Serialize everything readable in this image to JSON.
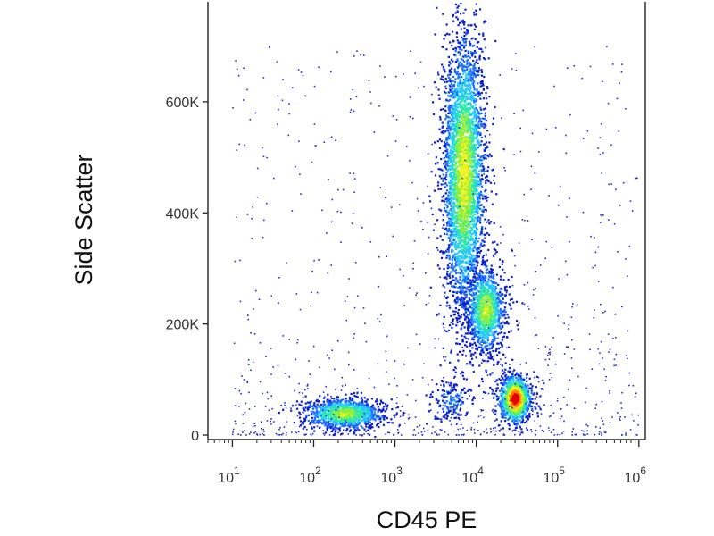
{
  "chart_data": {
    "type": "scatter",
    "style": "flow-cytometry pseudocolor density plot",
    "title": "",
    "xlabel": "CD45 PE",
    "ylabel": "Side Scatter",
    "x_scale": "log",
    "xlim": [
      5,
      1200000
    ],
    "ylim": [
      -8000,
      780000
    ],
    "grid": false,
    "legend": "none",
    "x_ticks": [
      {
        "value": 10,
        "base": "10",
        "exp": "1"
      },
      {
        "value": 100,
        "base": "10",
        "exp": "2"
      },
      {
        "value": 1000,
        "base": "10",
        "exp": "3"
      },
      {
        "value": 10000,
        "base": "10",
        "exp": "4"
      },
      {
        "value": 100000,
        "base": "10",
        "exp": "5"
      },
      {
        "value": 1000000,
        "base": "10",
        "exp": "6"
      }
    ],
    "y_ticks": [
      {
        "value": 0,
        "label": "0"
      },
      {
        "value": 200000,
        "label": "200K"
      },
      {
        "value": 400000,
        "label": "400K"
      },
      {
        "value": 600000,
        "label": "600K"
      }
    ],
    "density_colormap": [
      "#0a1fcc",
      "#1a6fff",
      "#22c8ff",
      "#2ee8a8",
      "#8cf03a",
      "#f2f21a",
      "#ff8a00",
      "#e60000"
    ],
    "populations": [
      {
        "log10_x": 3.85,
        "y": 470000,
        "sd_log10_x": 0.13,
        "sd_y": 130000,
        "peak_density": 0.68
      },
      {
        "log10_x": 4.12,
        "y": 225000,
        "sd_log10_x": 0.12,
        "sd_y": 40000,
        "peak_density": 0.62
      },
      {
        "log10_x": 4.48,
        "y": 65000,
        "sd_log10_x": 0.1,
        "sd_y": 22000,
        "peak_density": 1.0
      },
      {
        "log10_x": 2.38,
        "y": 38000,
        "sd_log10_x": 0.25,
        "sd_y": 14000,
        "peak_density": 0.62
      },
      {
        "log10_x": 3.7,
        "y": 60000,
        "sd_log10_x": 0.12,
        "sd_y": 20000,
        "peak_density": 0.2
      }
    ]
  }
}
